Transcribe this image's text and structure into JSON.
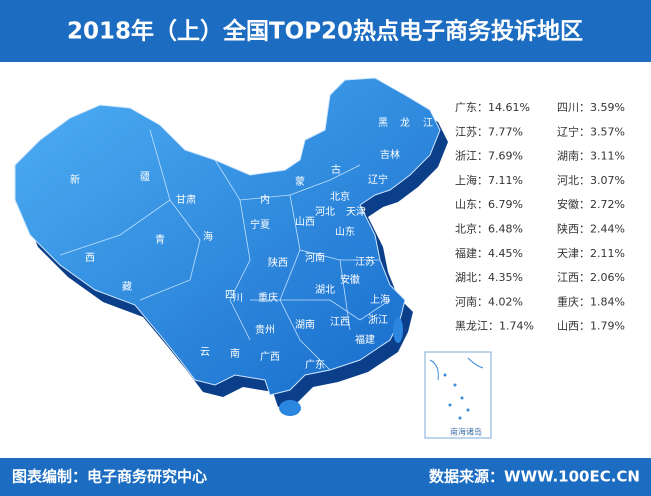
{
  "header": {
    "title": "2018年（上）全国TOP20热点电子商务投诉地区"
  },
  "ranking": [
    {
      "name": "广东：",
      "value": "14.61%"
    },
    {
      "name": "四川：",
      "value": "3.59%"
    },
    {
      "name": "江苏：",
      "value": "7.77%"
    },
    {
      "name": "辽宁：",
      "value": "3.57%"
    },
    {
      "name": "浙江：",
      "value": "7.69%"
    },
    {
      "name": "湖南：",
      "value": "3.11%"
    },
    {
      "name": "上海：",
      "value": "7.11%"
    },
    {
      "name": "河北：",
      "value": "3.07%"
    },
    {
      "name": "山东：",
      "value": "6.79%"
    },
    {
      "name": "安徽：",
      "value": "2.72%"
    },
    {
      "name": "北京：",
      "value": "6.48%"
    },
    {
      "name": "陕西：",
      "value": "2.44%"
    },
    {
      "name": "福建：",
      "value": "4.45%"
    },
    {
      "name": "天津：",
      "value": "2.11%"
    },
    {
      "name": "湖北：",
      "value": "4.35%"
    },
    {
      "name": "江西：",
      "value": "2.06%"
    },
    {
      "name": "河南：",
      "value": "4.02%"
    },
    {
      "name": "重庆：",
      "value": "1.84%"
    },
    {
      "name": "黑龙江：",
      "value": "1.74%"
    },
    {
      "name": "山西：",
      "value": "1.79%"
    }
  ],
  "map_labels": [
    "新",
    "疆",
    "西",
    "藏",
    "青",
    "海",
    "甘肃",
    "内",
    "蒙",
    "古",
    "宁夏",
    "陕西",
    "山西",
    "河北",
    "北京",
    "天津",
    "辽宁",
    "吉林",
    "黑",
    "龙",
    "江",
    "山东",
    "河南",
    "江苏",
    "安徽",
    "湖北",
    "四",
    "川",
    "重庆",
    "贵州",
    "湖南",
    "江西",
    "浙江",
    "福建",
    "云",
    "南",
    "广西",
    "广东",
    "上海"
  ],
  "inset_label": "南海诸岛",
  "footer": {
    "compiler": "图表编制：电子商务研究中心",
    "source": "数据来源：WWW.100EC.CN"
  }
}
